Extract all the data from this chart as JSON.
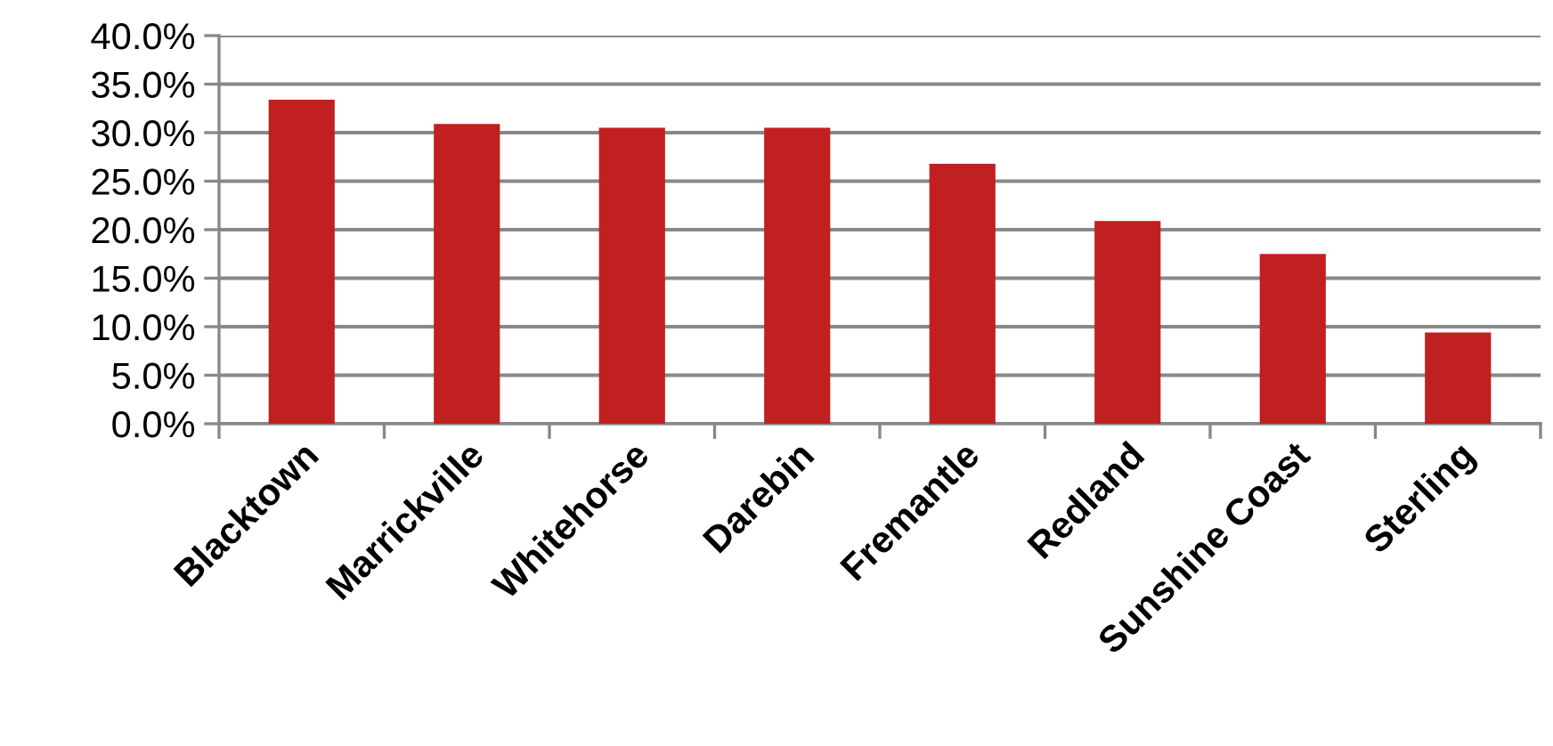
{
  "chart_data": {
    "type": "bar",
    "categories": [
      "Blacktown",
      "Marrickville",
      "Whitehorse",
      "Darebin",
      "Fremantle",
      "Redland",
      "Sunshine Coast",
      "Sterling"
    ],
    "values": [
      33.4,
      30.9,
      30.5,
      30.5,
      26.8,
      20.9,
      17.5,
      9.4
    ],
    "color": "#c02020",
    "ylim": [
      0,
      40
    ],
    "yticks": [
      {
        "value": 0,
        "label": "0.0%"
      },
      {
        "value": 5,
        "label": "5.0%"
      },
      {
        "value": 10,
        "label": "10.0%"
      },
      {
        "value": 15,
        "label": "15.0%"
      },
      {
        "value": 20,
        "label": "20.0%"
      },
      {
        "value": 25,
        "label": "25.0%"
      },
      {
        "value": 30,
        "label": "30.0%"
      },
      {
        "value": 35,
        "label": "35.0%"
      },
      {
        "value": 40,
        "label": "40.0%"
      }
    ],
    "grid": "y"
  }
}
